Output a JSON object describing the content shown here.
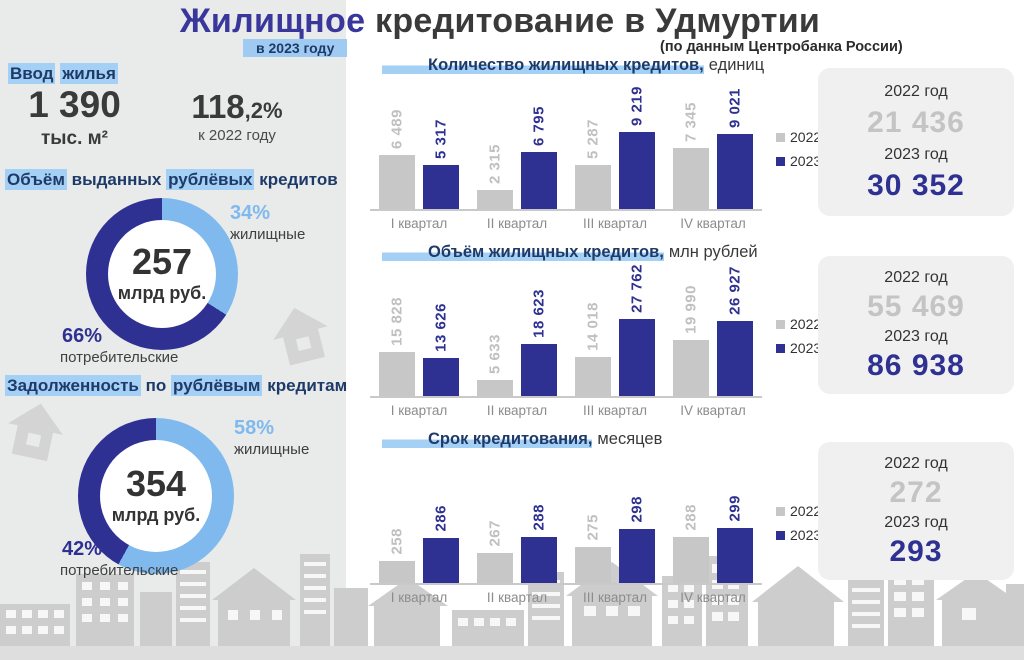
{
  "colors": {
    "accent_blue": "#2E3192",
    "title_blue": "#39379B",
    "light_blue": "#7FB9EE",
    "highlight": "#A5D0F5",
    "gray_bar": "#C7C7C7",
    "gray_value": "#C4C4C4",
    "navy_heading": "#1E3A68",
    "panel_bg": "#E9EAEA",
    "card_bg": "#F0F0F0",
    "skyline_gray": "#CDCDCD"
  },
  "title": {
    "parts": [
      {
        "t": "Жилищное",
        "c": "accent"
      },
      {
        "t": " кредитование в Удмуртии"
      }
    ],
    "subtitle": "в 2023 году",
    "source": "(по данным Центробанка России)"
  },
  "left_panel": {
    "intro": {
      "heading_parts": [
        {
          "t": "Ввод",
          "c": "hl"
        },
        {
          "t": " "
        },
        {
          "t": "жилья",
          "c": "hl"
        }
      ],
      "value": "1 390",
      "unit": "тыс. м²",
      "growth": "118",
      "growth_suffix": ",2%",
      "growth_caption": "к 2022 году"
    }
  },
  "cards_labels": {
    "y2022": "2022 год",
    "y2023": "2023 год"
  },
  "chart_data": [
    {
      "type": "donut",
      "title_parts": [
        {
          "t": "Объём",
          "c": "hl"
        },
        {
          "t": " выданных "
        },
        {
          "t": "рублёвых",
          "c": "hl"
        },
        {
          "t": " кредитов"
        }
      ],
      "center_value": "257",
      "center_unit": "млрд руб.",
      "slices": [
        {
          "label": "жилищные",
          "pct": 34,
          "pct_text": "34%",
          "color": "#7FB9EE"
        },
        {
          "label": "потребительские",
          "pct": 66,
          "pct_text": "66%",
          "color": "#2E3192"
        }
      ]
    },
    {
      "type": "donut",
      "title_parts": [
        {
          "t": "Задолженность",
          "c": "hl"
        },
        {
          "t": " по "
        },
        {
          "t": "рублёвым",
          "c": "hl"
        },
        {
          "t": " кредитам"
        }
      ],
      "center_value": "354",
      "center_unit": "млрд руб.",
      "slices": [
        {
          "label": "жилищные",
          "pct": 58,
          "pct_text": "58%",
          "color": "#7FB9EE"
        },
        {
          "label": "потребительские",
          "pct": 42,
          "pct_text": "42%",
          "color": "#2E3192"
        }
      ]
    },
    {
      "type": "bar",
      "title": "Количество жилищных кредитов,",
      "unit": "единиц",
      "categories": [
        "I квартал",
        "II квартал",
        "III квартал",
        "IV квартал"
      ],
      "series": [
        {
          "name": "2022",
          "color": "#C7C7C7",
          "label_color": "#C0C0C0",
          "values": [
            6489,
            2315,
            5287,
            7345
          ],
          "labels": [
            "6 489",
            "2 315",
            "5 287",
            "7 345"
          ]
        },
        {
          "name": "2023",
          "color": "#2E3192",
          "label_color": "#2E3192",
          "values": [
            5317,
            6795,
            9219,
            9021
          ],
          "labels": [
            "5 317",
            "6 795",
            "9 219",
            "9 021"
          ]
        }
      ],
      "ylim": [
        0,
        15300
      ],
      "legend_position": "right",
      "totals": {
        "v2022": "21 436",
        "v2023": "30 352"
      }
    },
    {
      "type": "bar",
      "title": "Объём жилищных кредитов,",
      "unit": "млн рублей",
      "categories": [
        "I квартал",
        "II квартал",
        "III квартал",
        "IV квартал"
      ],
      "series": [
        {
          "name": "2022",
          "color": "#C7C7C7",
          "label_color": "#C0C0C0",
          "values": [
            15828,
            5633,
            14018,
            19990
          ],
          "labels": [
            "15 828",
            "5 633",
            "14 018",
            "19 990"
          ]
        },
        {
          "name": "2023",
          "color": "#2E3192",
          "label_color": "#2E3192",
          "values": [
            13626,
            18623,
            27762,
            26927
          ],
          "labels": [
            "13 626",
            "18 623",
            "27 762",
            "26 927"
          ]
        }
      ],
      "ylim": [
        0,
        46000
      ],
      "legend_position": "right",
      "totals": {
        "v2022": "55 469",
        "v2023": "86 938"
      }
    },
    {
      "type": "bar",
      "title": "Срок кредитования,",
      "unit": "месяцев",
      "categories": [
        "I квартал",
        "II квартал",
        "III квартал",
        "IV квартал"
      ],
      "series": [
        {
          "name": "2022",
          "color": "#C7C7C7",
          "label_color": "#C0C0C0",
          "values": [
            258,
            267,
            275,
            288
          ],
          "labels": [
            "258",
            "267",
            "275",
            "288"
          ]
        },
        {
          "name": "2023",
          "color": "#2E3192",
          "label_color": "#2E3192",
          "values": [
            286,
            288,
            298,
            299
          ],
          "labels": [
            "286",
            "288",
            "298",
            "299"
          ]
        }
      ],
      "ylim": [
        230,
        390
      ],
      "legend_position": "right",
      "totals": {
        "v2022": "272",
        "v2023": "293"
      }
    }
  ]
}
